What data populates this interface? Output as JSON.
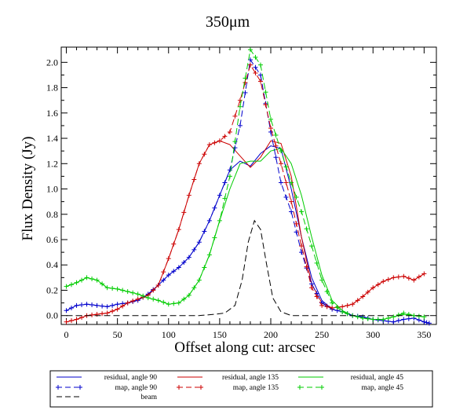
{
  "chart_data": {
    "type": "line",
    "title": "350μm",
    "xlabel": "Offset along cut: arcsec",
    "ylabel": "Flux Density (Jy)",
    "xlim": [
      -5,
      362
    ],
    "ylim": [
      -0.07,
      2.12
    ],
    "xticks": [
      0,
      50,
      100,
      150,
      200,
      250,
      300,
      350
    ],
    "yticks": [
      0.0,
      0.2,
      0.4,
      0.6,
      0.8,
      1.0,
      1.2,
      1.4,
      1.6,
      1.8,
      2.0
    ],
    "ytick_labels": [
      "0.0",
      "0.2",
      "0.4",
      "0.6",
      "0.8",
      "1.0",
      "1.2",
      "1.4",
      "1.6",
      "1.8",
      "2.0"
    ],
    "legend_position": "below",
    "series": [
      {
        "name": "residual, angle 90",
        "color": "#0000cc",
        "style": "solid",
        "marker": "none",
        "x": [
          0,
          10,
          20,
          30,
          40,
          50,
          60,
          70,
          80,
          90,
          100,
          110,
          120,
          130,
          140,
          150,
          160,
          170,
          180,
          190,
          200,
          210,
          220,
          230,
          240,
          250,
          260,
          270,
          280,
          290,
          300,
          310,
          320,
          330,
          340,
          350,
          355
        ],
        "y": [
          0.04,
          0.08,
          0.09,
          0.08,
          0.07,
          0.09,
          0.1,
          0.12,
          0.17,
          0.24,
          0.32,
          0.38,
          0.46,
          0.58,
          0.75,
          0.95,
          1.15,
          1.22,
          1.18,
          1.28,
          1.34,
          1.32,
          1.0,
          0.62,
          0.3,
          0.12,
          0.05,
          0.03,
          0.0,
          -0.01,
          -0.03,
          -0.04,
          -0.05,
          -0.03,
          -0.02,
          -0.05,
          -0.06
        ]
      },
      {
        "name": "residual, angle 135",
        "color": "#cc0000",
        "style": "solid",
        "marker": "none",
        "x": [
          0,
          10,
          20,
          30,
          40,
          50,
          60,
          70,
          80,
          90,
          100,
          110,
          120,
          130,
          140,
          150,
          160,
          170,
          180,
          190,
          200,
          210,
          220,
          230,
          240,
          250,
          260,
          270,
          280,
          290,
          300,
          310,
          320,
          330,
          340,
          350
        ],
        "y": [
          -0.05,
          -0.03,
          0.0,
          0.01,
          0.02,
          0.05,
          0.1,
          0.13,
          0.16,
          0.24,
          0.45,
          0.68,
          0.95,
          1.2,
          1.35,
          1.38,
          1.35,
          1.26,
          1.17,
          1.25,
          1.38,
          1.36,
          1.1,
          0.62,
          0.25,
          0.1,
          0.06,
          0.07,
          0.09,
          0.15,
          0.22,
          0.27,
          0.3,
          0.31,
          0.28,
          0.33
        ]
      },
      {
        "name": "residual, angle 45",
        "color": "#00cc00",
        "style": "solid",
        "marker": "none",
        "x": [
          0,
          10,
          20,
          30,
          40,
          50,
          60,
          70,
          80,
          90,
          100,
          110,
          120,
          130,
          140,
          150,
          160,
          170,
          180,
          190,
          200,
          210,
          220,
          230,
          240,
          250,
          260,
          270,
          280,
          290,
          300,
          310,
          320,
          330,
          340,
          350
        ],
        "y": [
          0.23,
          0.26,
          0.3,
          0.28,
          0.22,
          0.21,
          0.19,
          0.17,
          0.14,
          0.12,
          0.09,
          0.1,
          0.16,
          0.28,
          0.48,
          0.75,
          1.0,
          1.2,
          1.22,
          1.22,
          1.3,
          1.32,
          1.2,
          0.95,
          0.62,
          0.32,
          0.12,
          0.04,
          0.0,
          -0.02,
          -0.03,
          -0.03,
          -0.01,
          0.01,
          0.0,
          -0.01
        ]
      },
      {
        "name": "map, angle 90",
        "color": "#0000cc",
        "style": "dashed",
        "marker": "plus",
        "x": [
          0,
          10,
          20,
          30,
          40,
          50,
          60,
          70,
          80,
          90,
          100,
          110,
          120,
          130,
          140,
          150,
          160,
          170,
          180,
          190,
          200,
          210,
          220,
          230,
          240,
          250,
          260,
          270,
          280,
          290,
          300,
          310,
          320,
          330,
          340,
          350,
          355
        ],
        "y": [
          0.04,
          0.08,
          0.09,
          0.08,
          0.07,
          0.09,
          0.1,
          0.12,
          0.17,
          0.24,
          0.32,
          0.38,
          0.46,
          0.58,
          0.75,
          0.95,
          1.15,
          1.5,
          2.02,
          1.9,
          1.45,
          1.05,
          0.82,
          0.5,
          0.25,
          0.1,
          0.05,
          0.03,
          0.0,
          -0.01,
          -0.03,
          -0.04,
          -0.05,
          -0.03,
          -0.02,
          -0.05,
          -0.06
        ]
      },
      {
        "name": "map, angle 135",
        "color": "#cc0000",
        "style": "dashed",
        "marker": "plus",
        "x": [
          0,
          10,
          20,
          30,
          40,
          50,
          60,
          70,
          80,
          90,
          100,
          110,
          120,
          130,
          140,
          150,
          160,
          170,
          180,
          190,
          200,
          210,
          220,
          230,
          240,
          250,
          260,
          270,
          280,
          290,
          300,
          310,
          320,
          330,
          340,
          350
        ],
        "y": [
          -0.05,
          -0.03,
          0.0,
          0.01,
          0.02,
          0.05,
          0.1,
          0.13,
          0.16,
          0.24,
          0.45,
          0.68,
          0.95,
          1.2,
          1.35,
          1.38,
          1.45,
          1.7,
          1.98,
          1.85,
          1.48,
          1.2,
          0.9,
          0.55,
          0.22,
          0.08,
          0.06,
          0.07,
          0.09,
          0.15,
          0.22,
          0.27,
          0.3,
          0.31,
          0.28,
          0.33
        ]
      },
      {
        "name": "map, angle 45",
        "color": "#00cc00",
        "style": "dashed",
        "marker": "plus",
        "x": [
          0,
          10,
          20,
          30,
          40,
          50,
          60,
          70,
          80,
          90,
          100,
          110,
          120,
          130,
          140,
          150,
          160,
          170,
          180,
          190,
          200,
          210,
          220,
          230,
          240,
          250,
          260,
          270,
          280,
          290,
          300,
          310,
          320,
          330,
          340,
          350
        ],
        "y": [
          0.23,
          0.26,
          0.3,
          0.28,
          0.22,
          0.21,
          0.19,
          0.17,
          0.14,
          0.12,
          0.09,
          0.1,
          0.16,
          0.28,
          0.48,
          0.75,
          1.1,
          1.65,
          2.1,
          1.98,
          1.55,
          1.3,
          1.05,
          0.82,
          0.55,
          0.28,
          0.1,
          0.03,
          0.0,
          -0.02,
          -0.03,
          -0.03,
          -0.01,
          0.02,
          0.0,
          -0.01
        ]
      },
      {
        "name": "beam",
        "color": "#000000",
        "style": "dashed",
        "marker": "none",
        "x": [
          0,
          50,
          100,
          130,
          145,
          155,
          165,
          172,
          178,
          184,
          190,
          196,
          202,
          210,
          220,
          240,
          300,
          355
        ],
        "y": [
          0,
          0,
          0,
          0,
          0.01,
          0.02,
          0.08,
          0.28,
          0.58,
          0.75,
          0.68,
          0.4,
          0.14,
          0.03,
          0,
          0,
          0,
          0
        ]
      }
    ]
  }
}
